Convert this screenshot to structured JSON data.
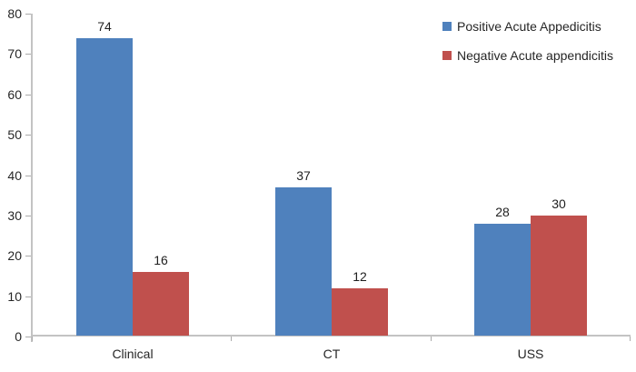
{
  "chart_data": {
    "type": "bar",
    "title": "",
    "xlabel": "",
    "ylabel": "",
    "categories": [
      "Clinical",
      "CT",
      "USS"
    ],
    "series": [
      {
        "name": "Positive Acute Appedicitis",
        "color": "#4F81BD",
        "values": [
          74,
          37,
          28
        ]
      },
      {
        "name": "Negative Acute appendicitis",
        "color": "#C0504D",
        "values": [
          16,
          12,
          30
        ]
      }
    ],
    "data_labels": [
      [
        "74",
        "37",
        "28"
      ],
      [
        "16",
        "12",
        "30"
      ]
    ],
    "ylim": [
      0,
      80
    ],
    "yticks": [
      0,
      10,
      20,
      30,
      40,
      50,
      60,
      70,
      80
    ],
    "grid": "off",
    "legend_position": "top-right",
    "colors": {
      "axis_line": "#c3c3c3",
      "tick_mark": "#ababab",
      "label_text": "#262626"
    }
  }
}
